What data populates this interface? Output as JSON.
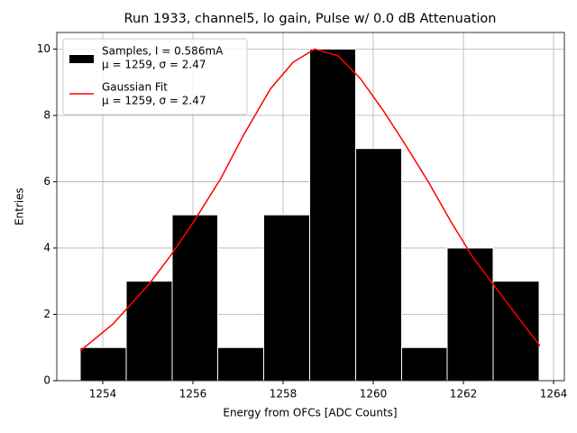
{
  "chart_data": {
    "type": "histogram",
    "title": "Run 1933, channel5, lo gain, Pulse w/ 0.0 dB Attenuation",
    "x_label": "Energy from OFCs [ADC Counts]",
    "y_label": "Entries",
    "xlim": [
      1252.98,
      1264.24
    ],
    "ylim": [
      0,
      10.5
    ],
    "xticks": [
      1254,
      1256,
      1258,
      1260,
      1262,
      1264
    ],
    "yticks": [
      0,
      2,
      4,
      6,
      8,
      10
    ],
    "grid": true,
    "legend": "upper left",
    "series": [
      {
        "type": "histogram",
        "name": "Samples, I = 0.586mA",
        "stats": "μ = 1259, σ = 2.47",
        "color": "#000000",
        "bins": [
          1253.5,
          1254.52,
          1255.54,
          1256.55,
          1257.57,
          1258.59,
          1259.61,
          1260.63,
          1261.64,
          1262.66,
          1263.68
        ],
        "values": [
          1,
          3,
          5,
          1,
          5,
          10,
          7,
          1,
          4,
          3
        ]
      },
      {
        "type": "line",
        "name": "Gaussian Fit",
        "stats": "μ = 1259, σ = 2.47",
        "color": "#ff0000",
        "x": [
          1253.5,
          1254.22,
          1255.02,
          1255.52,
          1256.02,
          1256.62,
          1257.12,
          1257.72,
          1258.22,
          1258.7,
          1259.22,
          1259.72,
          1260.22,
          1260.72,
          1261.22,
          1261.72,
          1262.22,
          1262.72,
          1263.22,
          1263.7
        ],
        "values": [
          0.9,
          1.7,
          2.9,
          3.8,
          4.8,
          6.1,
          7.4,
          8.8,
          9.6,
          10.0,
          9.8,
          9.1,
          8.15,
          7.1,
          6.0,
          4.8,
          3.7,
          2.8,
          1.9,
          1.05
        ]
      }
    ]
  }
}
